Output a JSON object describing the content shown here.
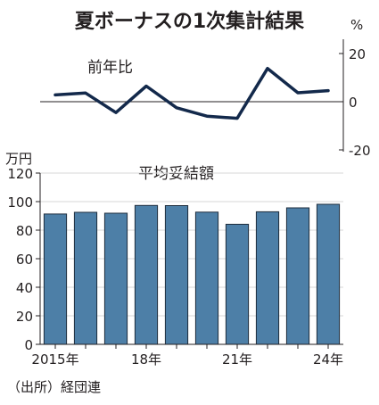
{
  "title": "夏ボーナスの1次集計結果",
  "source": "（出所）経団連",
  "chart_data": [
    {
      "type": "line",
      "series_label": "前年比",
      "unit": "%",
      "x": [
        2015,
        2016,
        2017,
        2018,
        2019,
        2020,
        2021,
        2022,
        2023,
        2024
      ],
      "values": [
        2.8,
        3.6,
        -4.5,
        6.5,
        -2.5,
        -6.0,
        -6.9,
        13.8,
        3.7,
        4.6
      ],
      "ylim": [
        -20,
        20
      ],
      "yticks": [
        "20",
        "0",
        "-20"
      ],
      "color": "#13294b"
    },
    {
      "type": "bar",
      "series_label": "平均妥結額",
      "unit": "万円",
      "x": [
        2015,
        2016,
        2017,
        2018,
        2019,
        2020,
        2021,
        2022,
        2023,
        2024
      ],
      "values": [
        91.3,
        92.5,
        91.9,
        97.3,
        97.2,
        92.6,
        84.1,
        92.9,
        95.6,
        98.1
      ],
      "ylim": [
        0,
        120
      ],
      "yticks": [
        "0",
        "20",
        "40",
        "60",
        "80",
        "100",
        "120"
      ],
      "xtick_labels": [
        "2015年",
        "",
        "",
        "18年",
        "",
        "",
        "21年",
        "",
        "",
        "24年"
      ],
      "color": "#4d7fa7"
    }
  ]
}
